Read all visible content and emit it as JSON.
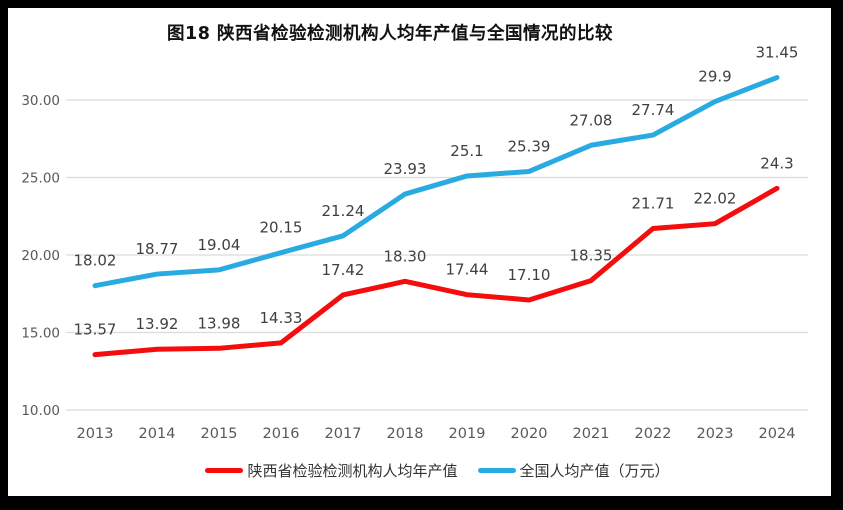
{
  "title": "图18 陕西省检验检测机构人均年产值与全国情况的比较",
  "colors": {
    "red_series": "#F30D0D",
    "blue_series": "#29ABE2",
    "gridline": "#DCDCDC",
    "axis_text": "#595959",
    "data_label_text": "#404040",
    "title_text": "#111111",
    "frame": "#000000",
    "panel": "#FFFFFF"
  },
  "legend": {
    "items": [
      {
        "label": "陕西省检验检测机构人均年产值",
        "color": "#F30D0D"
      },
      {
        "label": "全国人均产值（万元）",
        "color": "#29ABE2"
      }
    ]
  },
  "chart_data": {
    "type": "line",
    "title": "图18 陕西省检验检测机构人均年产值与全国情况的比较",
    "categories": [
      "2013",
      "2014",
      "2015",
      "2016",
      "2017",
      "2018",
      "2019",
      "2020",
      "2021",
      "2022",
      "2023",
      "2024"
    ],
    "series": [
      {
        "name": "陕西省检验检测机构人均年产值",
        "color": "#F30D0D",
        "values": [
          13.57,
          13.92,
          13.98,
          14.33,
          17.42,
          18.3,
          17.44,
          17.1,
          18.35,
          21.71,
          22.02,
          24.3
        ],
        "labels": [
          "13.57",
          "13.92",
          "13.98",
          "14.33",
          "17.42",
          "18.30",
          "17.44",
          "17.10",
          "18.35",
          "21.71",
          "22.02",
          "24.3"
        ]
      },
      {
        "name": "全国人均产值（万元）",
        "color": "#29ABE2",
        "values": [
          18.02,
          18.77,
          19.04,
          20.15,
          21.24,
          23.93,
          25.1,
          25.39,
          27.08,
          27.74,
          29.9,
          31.45
        ],
        "labels": [
          "18.02",
          "18.77",
          "19.04",
          "20.15",
          "21.24",
          "23.93",
          "25.1",
          "25.39",
          "27.08",
          "27.74",
          "29.9",
          "31.45"
        ]
      }
    ],
    "xlabel": "",
    "ylabel": "",
    "yticks": {
      "values": [
        10,
        15,
        20,
        25,
        30
      ],
      "labels": [
        "10.00",
        "15.00",
        "20.00",
        "25.00",
        "30.00"
      ]
    },
    "ylim": [
      10,
      33
    ],
    "grid": true,
    "legend_position": "bottom"
  }
}
